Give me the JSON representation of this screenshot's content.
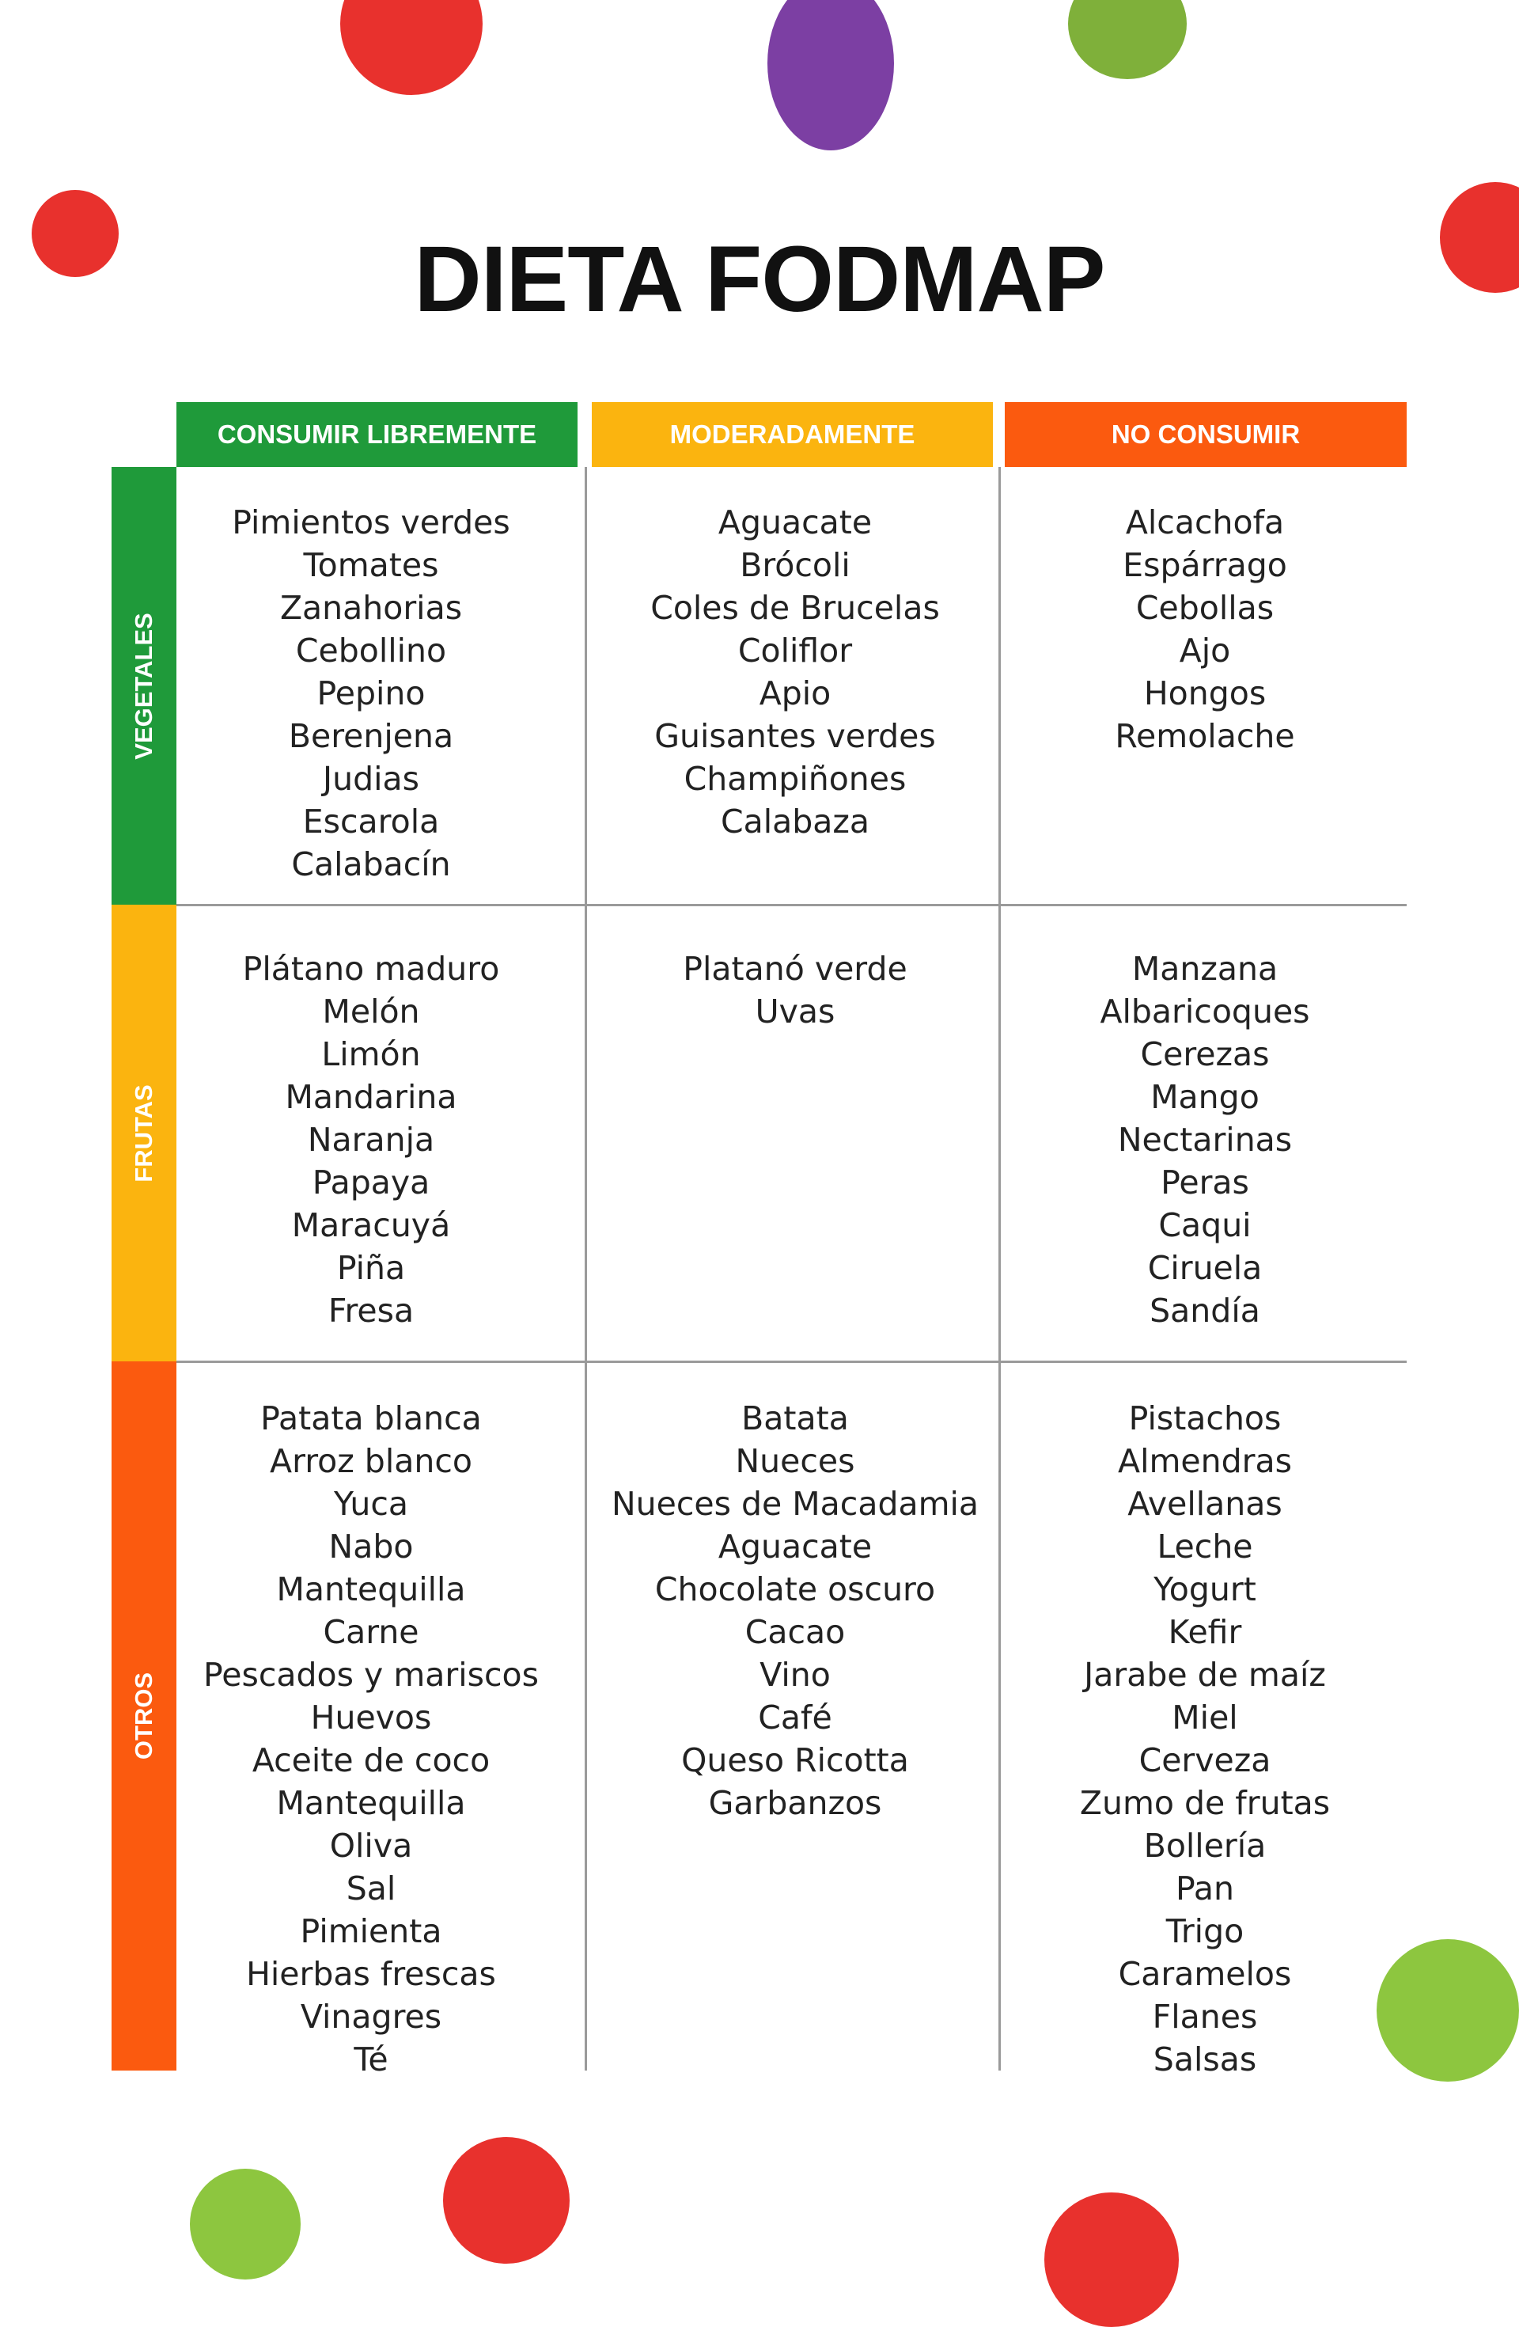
{
  "header": {
    "title": "DIETA FODMAP"
  },
  "table": {
    "columns": [
      "CONSUMIR LIBREMENTE",
      "MODERADAMENTE",
      "NO CONSUMIR"
    ],
    "rows": [
      {
        "label": "VEGETALES",
        "cells": [
          [
            "Pimientos verdes",
            "Tomates",
            "Zanahorias",
            "Cebollino",
            "Pepino",
            "Berenjena",
            "Judias",
            "Escarola",
            "Calabacín"
          ],
          [
            "Aguacate",
            "Brócoli",
            "Coles de Brucelas",
            "Coliflor",
            "Apio",
            "Guisantes verdes",
            "Champiñones",
            "Calabaza"
          ],
          [
            "Alcachofa",
            "Espárrago",
            "Cebollas",
            "Ajo",
            "Hongos",
            "Remolache"
          ]
        ]
      },
      {
        "label": "FRUTAS",
        "cells": [
          [
            "Plátano maduro",
            "Melón",
            "Limón",
            "Mandarina",
            "Naranja",
            "Papaya",
            "Maracuyá",
            "Piña",
            "Fresa"
          ],
          [
            "Platanó verde",
            "Uvas"
          ],
          [
            "Manzana",
            "Albaricoques",
            "Cerezas",
            "Mango",
            "Nectarinas",
            "Peras",
            "Caqui",
            "Ciruela",
            "Sandía"
          ]
        ]
      },
      {
        "label": "OTROS",
        "cells": [
          [
            "Patata blanca",
            "Arroz blanco",
            "Yuca",
            "Nabo",
            "Mantequilla",
            "Carne",
            "Pescados y mariscos",
            "Huevos",
            "Aceite de coco",
            "Mantequilla",
            "Oliva",
            "Sal",
            "Pimienta",
            "Hierbas frescas",
            "Vinagres",
            "Té"
          ],
          [
            "Batata",
            "Nueces",
            "Nueces de Macadamia",
            "Aguacate",
            "Chocolate oscuro",
            "Cacao",
            "Vino",
            "Café",
            "Queso Ricotta",
            "Garbanzos"
          ],
          [
            "Pistachos",
            "Almendras",
            "Avellanas",
            "Leche",
            "Yogurt",
            "Kefir",
            "Jarabe de maíz",
            "Miel",
            "Cerveza",
            "Zumo de frutas",
            "Bollería",
            "Pan",
            "Trigo",
            "Caramelos",
            "Flanes",
            "Salsas"
          ]
        ]
      }
    ]
  }
}
